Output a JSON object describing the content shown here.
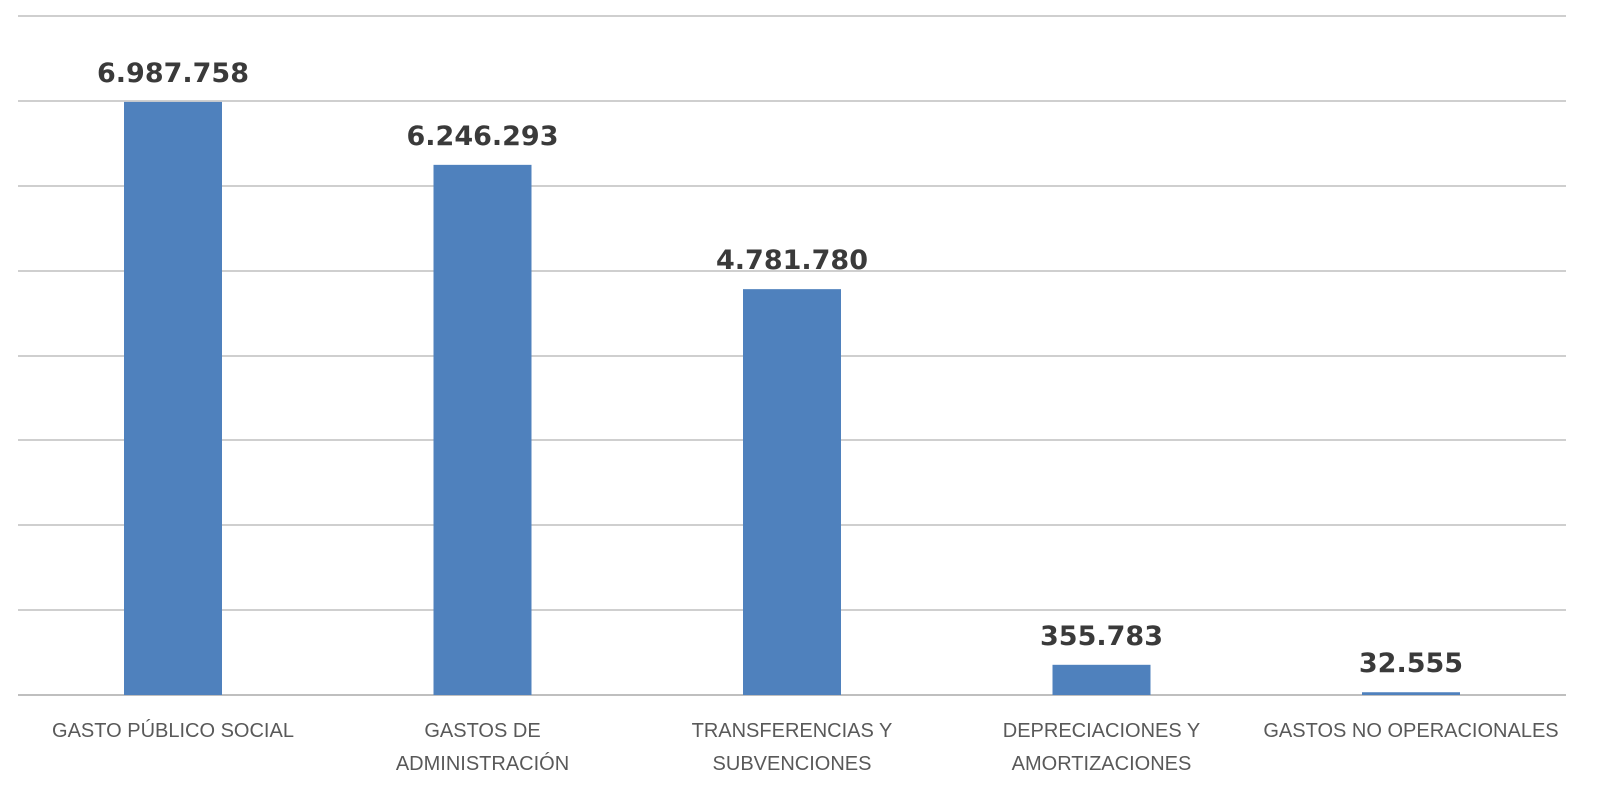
{
  "chart_data": {
    "type": "bar",
    "title": "",
    "xlabel": "",
    "ylabel": "",
    "ylim": [
      0,
      8000000
    ],
    "grid": true,
    "legend": "none",
    "bar_color": "#4f81bd",
    "categories": [
      [
        "GASTO PÚBLICO SOCIAL"
      ],
      [
        "GASTOS DE",
        "ADMINISTRACIÓN"
      ],
      [
        "TRANSFERENCIAS Y",
        "SUBVENCIONES"
      ],
      [
        "DEPRECIACIONES Y",
        "AMORTIZACIONES"
      ],
      [
        "GASTOS NO OPERACIONALES"
      ]
    ],
    "values": [
      6987758,
      6246293,
      4781780,
      355783,
      32555
    ],
    "value_labels": [
      "6.987.758",
      "6.246.293",
      "4.781.780",
      "355.783",
      "32.555"
    ]
  }
}
